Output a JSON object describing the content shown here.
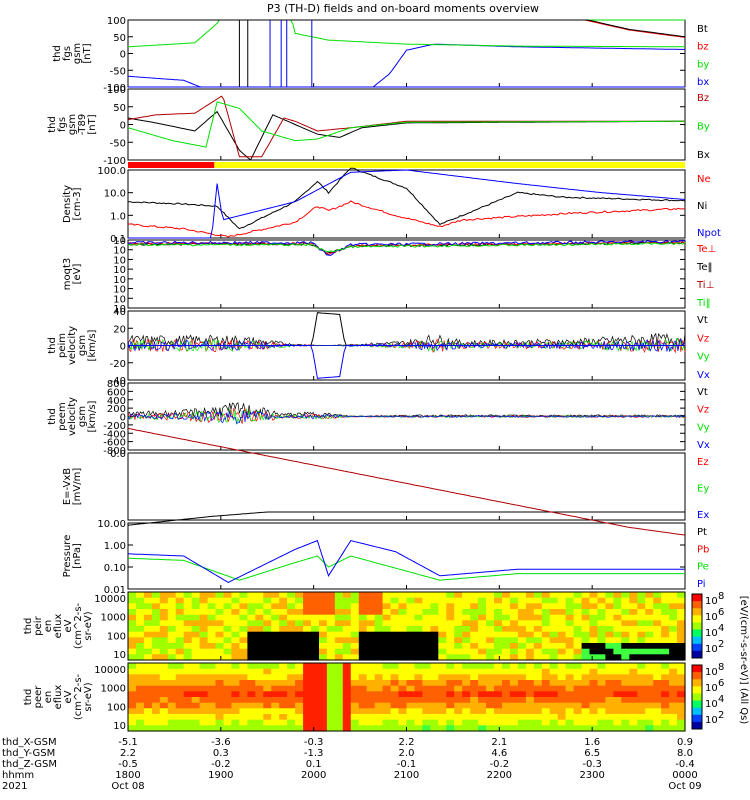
{
  "title": "P3 (TH-D) fields and on-board moments overview",
  "colors": {
    "black": "#000000",
    "red": "#ff0000",
    "darkred": "#b00000",
    "green": "#00e000",
    "blue": "#0000ff",
    "yellow": "#ffff00"
  },
  "chart_data": [
    {
      "type": "line",
      "panel": "fgs",
      "ylabel_lines": [
        "thd",
        "fgs",
        "gsm",
        "[nT]"
      ],
      "yticks": [
        "100",
        "50",
        "0",
        "-50",
        "-100"
      ],
      "ylim": [
        -100,
        100
      ],
      "series": [
        {
          "name": "Bt",
          "color": "black"
        },
        {
          "name": "bz",
          "color": "red"
        },
        {
          "name": "by",
          "color": "green"
        },
        {
          "name": "bx",
          "color": "blue"
        }
      ]
    },
    {
      "type": "line",
      "panel": "fgs-detrended",
      "ylabel_lines": [
        "thd",
        "fgs",
        "gsm",
        "-T89",
        "[nT]"
      ],
      "yticks": [
        "100",
        "50",
        "0",
        "-50",
        "-100"
      ],
      "ylim": [
        -120,
        100
      ],
      "series": [
        {
          "name": "Bz",
          "color": "darkred"
        },
        {
          "name": "By",
          "color": "green"
        },
        {
          "name": "Bx",
          "color": "black"
        }
      ]
    },
    {
      "type": "bar",
      "panel": "mode-bar",
      "segments": [
        {
          "color": "red",
          "from": "1800",
          "to": "1900"
        },
        {
          "color": "yellow",
          "from": "1900",
          "to": "0000"
        }
      ]
    },
    {
      "type": "line",
      "panel": "density",
      "ylabel_lines": [
        "Density",
        "[cm-3]"
      ],
      "yticks": [
        "100.0",
        "10.0",
        "1.0",
        "0.1"
      ],
      "log": true,
      "series": [
        {
          "name": "Ne",
          "color": "red"
        },
        {
          "name": "Ni",
          "color": "black"
        },
        {
          "name": "Npot",
          "color": "blue"
        }
      ]
    },
    {
      "type": "line",
      "panel": "temperature",
      "ylabel_lines": [
        "moqt3",
        "[eV]"
      ],
      "yticks": [
        "10",
        "10",
        "10",
        "10",
        "10",
        "10",
        "10",
        "10"
      ],
      "log": true,
      "series": [
        {
          "name": "Te⊥",
          "color": "red"
        },
        {
          "name": "Te‖",
          "color": "black"
        },
        {
          "name": "Ti⊥",
          "color": "darkred"
        },
        {
          "name": "Ti‖",
          "color": "green"
        }
      ]
    },
    {
      "type": "line",
      "panel": "peim-velocity",
      "ylabel_lines": [
        "thd",
        "peim",
        "velocity",
        "gsm",
        "[km/s]"
      ],
      "yticks": [
        "40",
        "20",
        "0",
        "-20",
        "-40"
      ],
      "ylim": [
        -40,
        40
      ],
      "series": [
        {
          "name": "Vt",
          "color": "black"
        },
        {
          "name": "Vz",
          "color": "red"
        },
        {
          "name": "Vy",
          "color": "green"
        },
        {
          "name": "Vx",
          "color": "blue"
        }
      ]
    },
    {
      "type": "line",
      "panel": "peem-velocity",
      "ylabel_lines": [
        "thd",
        "peem",
        "velocity",
        "gsm",
        "[km/s]"
      ],
      "yticks": [
        "800",
        "600",
        "400",
        "200",
        "0",
        "-200",
        "-400",
        "-600",
        "-800"
      ],
      "ylim": [
        -800,
        800
      ],
      "series": [
        {
          "name": "Vt",
          "color": "black"
        },
        {
          "name": "Vz",
          "color": "red"
        },
        {
          "name": "Vy",
          "color": "green"
        },
        {
          "name": "Vx",
          "color": "blue"
        }
      ]
    },
    {
      "type": "line",
      "panel": "efield",
      "ylabel_lines": [
        "E=-VxB",
        "[mV/m]"
      ],
      "yticks": [
        "0.0"
      ],
      "series": [
        {
          "name": "Ez",
          "color": "red"
        },
        {
          "name": "Ey",
          "color": "green"
        },
        {
          "name": "Ex",
          "color": "blue"
        }
      ]
    },
    {
      "type": "line",
      "panel": "pressure",
      "ylabel_lines": [
        "Pressure",
        "[nPa]"
      ],
      "yticks": [
        "10.00",
        "1.00",
        "0.10",
        "0.01"
      ],
      "log": true,
      "series": [
        {
          "name": "Pt",
          "color": "black"
        },
        {
          "name": "Pb",
          "color": "red"
        },
        {
          "name": "Pe",
          "color": "green"
        },
        {
          "name": "Pi",
          "color": "blue"
        }
      ]
    },
    {
      "type": "heatmap",
      "panel": "peir",
      "ylabel_lines": [
        "thd",
        "peir",
        "en",
        "eflux",
        "eV",
        "(cm^2-s-",
        "sr-eV)"
      ],
      "yticks": [
        "10000",
        "1000",
        "100",
        "10"
      ],
      "colorbar_ticks": [
        "10",
        "10",
        "10",
        "10"
      ],
      "colorbar_exponents": [
        "8",
        "6",
        "4",
        "2"
      ]
    },
    {
      "type": "heatmap",
      "panel": "peer",
      "ylabel_lines": [
        "thd",
        "peer",
        "en",
        "eflux",
        "eV",
        "(cm^2-s-",
        "sr-eV)"
      ],
      "yticks": [
        "10000",
        "1000",
        "100",
        "10"
      ],
      "colorbar_ticks": [
        "10",
        "10",
        "10",
        "10"
      ],
      "colorbar_exponents": [
        "8",
        "6",
        "4",
        "2"
      ]
    }
  ],
  "colorbar_label": "[eV/(cm²-s-sr-eV)] (All Qs)",
  "xaxis": {
    "row_labels": [
      "thd_X-GSM",
      "thd_Y-GSM",
      "thd_Z-GSM",
      "hhmm",
      "2021"
    ],
    "ticks": [
      {
        "x": "-5.1",
        "y": "2.2",
        "z": "-0.5",
        "hhmm": "1800",
        "date": "Oct 08"
      },
      {
        "x": "-3.6",
        "y": "0.3",
        "z": "-0.2",
        "hhmm": "1900",
        "date": ""
      },
      {
        "x": "-0.3",
        "y": "-1.3",
        "z": "0.1",
        "hhmm": "2000",
        "date": ""
      },
      {
        "x": "2.2",
        "y": "2.0",
        "z": "-0.1",
        "hhmm": "2100",
        "date": ""
      },
      {
        "x": "2.1",
        "y": "4.6",
        "z": "-0.2",
        "hhmm": "2200",
        "date": ""
      },
      {
        "x": "1.6",
        "y": "6.5",
        "z": "-0.3",
        "hhmm": "2300",
        "date": ""
      },
      {
        "x": "0.9",
        "y": "8.0",
        "z": "-0.4",
        "hhmm": "0000",
        "date": "Oct 09"
      }
    ]
  }
}
